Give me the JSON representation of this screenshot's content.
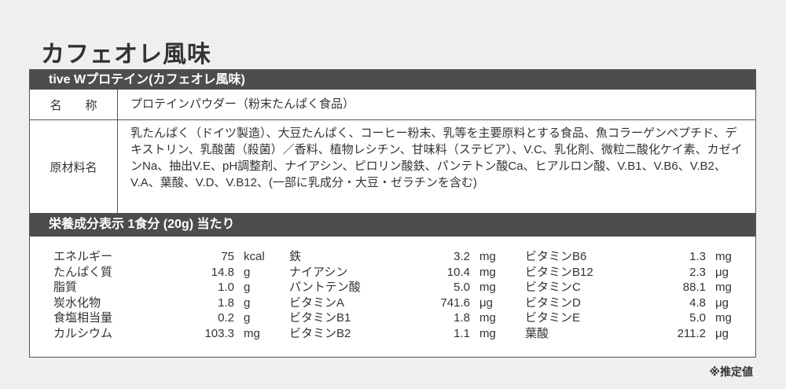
{
  "title": "カフェオレ風味",
  "header": "tive Wプロテイン(カフェオレ風味)",
  "name_label": "名　　称",
  "name_value": "プロテインパウダー（粉末たんぱく食品）",
  "ingredients_label": "原材料名",
  "ingredients_value": "乳たんぱく（ドイツ製造）、大豆たんぱく、コーヒー粉末、乳等を主要原料とする食品、魚コラーゲンペプチド、デキストリン、乳酸菌（殺菌）／香料、植物レシチン、甘味料（ステビア）、V.C、乳化剤、微粒二酸化ケイ素、カゼインNa、抽出V.E、pH調整剤、ナイアシン、ピロリン酸鉄、パンテトン酸Ca、ヒアルロン酸、V.B1、V.B6、V.B2、V.A、葉酸、V.D、V.B12、(一部に乳成分・大豆・ゼラチンを含む)",
  "nutrition_header": "栄養成分表示 1食分 (20g) 当たり",
  "nutrition": [
    [
      [
        "エネルギー",
        "75",
        "kcal"
      ],
      [
        "たんぱく質",
        "14.8",
        "g"
      ],
      [
        "脂質",
        "1.0",
        "g"
      ],
      [
        "炭水化物",
        "1.8",
        "g"
      ],
      [
        "食塩相当量",
        "0.2",
        "g"
      ],
      [
        "カルシウム",
        "103.3",
        "mg"
      ]
    ],
    [
      [
        "鉄",
        "3.2",
        "mg"
      ],
      [
        "ナイアシン",
        "10.4",
        "mg"
      ],
      [
        "パントテン酸",
        "5.0",
        "mg"
      ],
      [
        "ビタミンA",
        "741.6",
        "μg"
      ],
      [
        "ビタミンB1",
        "1.8",
        "mg"
      ],
      [
        "ビタミンB2",
        "1.1",
        "mg"
      ]
    ],
    [
      [
        "ビタミンB6",
        "1.3",
        "mg"
      ],
      [
        "ビタミンB12",
        "2.3",
        "μg"
      ],
      [
        "ビタミンC",
        "88.1",
        "mg"
      ],
      [
        "ビタミンD",
        "4.8",
        "μg"
      ],
      [
        "ビタミンE",
        "5.0",
        "mg"
      ],
      [
        "葉酸",
        "211.2",
        "μg"
      ]
    ]
  ],
  "note": "※推定値"
}
